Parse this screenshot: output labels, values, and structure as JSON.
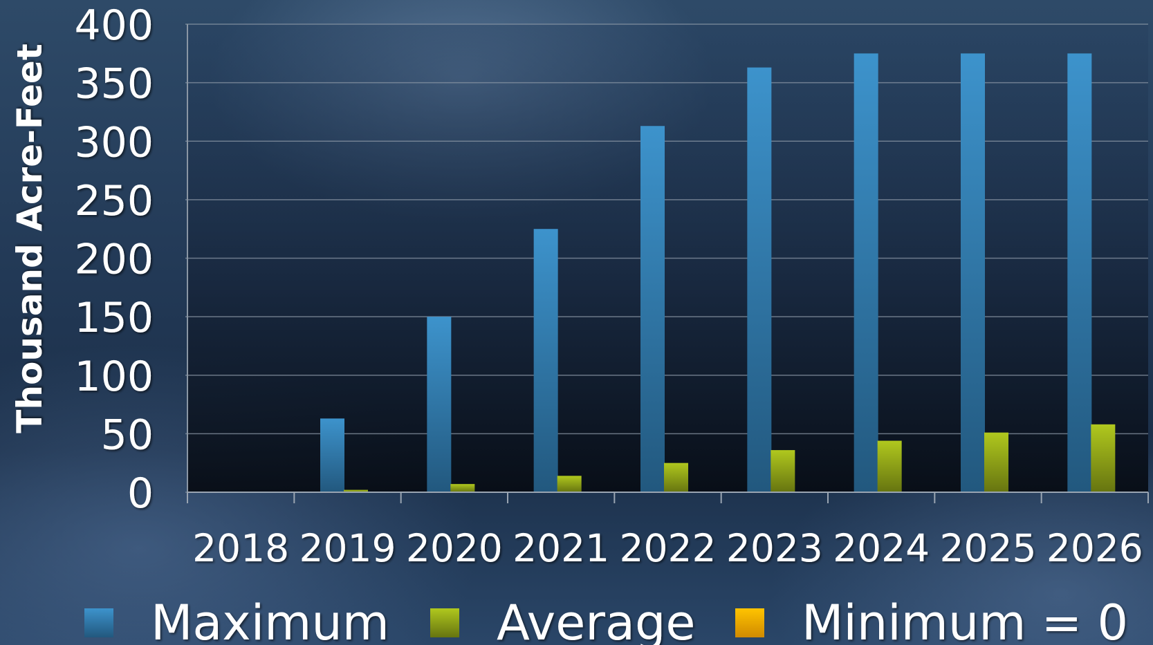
{
  "chart_data": {
    "type": "bar",
    "title": "",
    "xlabel": "",
    "ylabel": "Thousand Acre-Feet",
    "ylim": [
      0,
      400
    ],
    "yticks": [
      0,
      50,
      100,
      150,
      200,
      250,
      300,
      350,
      400
    ],
    "categories": [
      "2018",
      "2019",
      "2020",
      "2021",
      "2022",
      "2023",
      "2024",
      "2025",
      "2026"
    ],
    "grid": true,
    "legend_position": "bottom",
    "series": [
      {
        "name": "Maximum",
        "color": "#3a8dc4",
        "values": [
          0,
          63,
          150,
          225,
          313,
          363,
          375,
          375,
          375
        ]
      },
      {
        "name": "Average",
        "color": "#a5bc1c",
        "values": [
          0,
          2,
          7,
          14,
          25,
          36,
          44,
          51,
          58
        ]
      },
      {
        "name": "Minimum = 0",
        "color": "#f5b800",
        "values": [
          0,
          0,
          0,
          0,
          0,
          0,
          0,
          0,
          0
        ]
      }
    ]
  }
}
